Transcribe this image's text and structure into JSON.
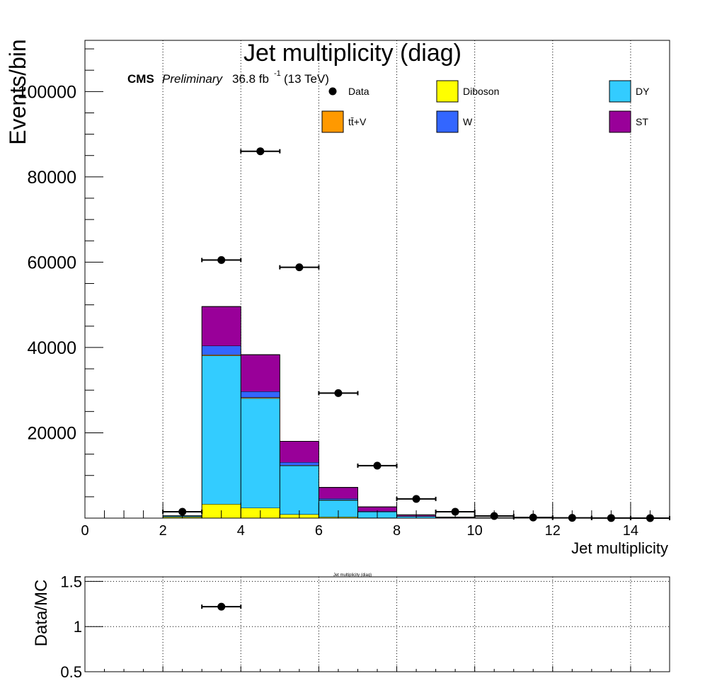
{
  "chart_data": {
    "type": "bar",
    "title": "Jet multiplicity (diag)",
    "xlabel": "Jet multiplicity",
    "ylabel": "Events/bin",
    "xlim": [
      0,
      15
    ],
    "ylim": [
      0,
      112000
    ],
    "x_ticks": [
      "0",
      "2",
      "4",
      "6",
      "8",
      "10",
      "12",
      "14"
    ],
    "y_ticks": [
      "20000",
      "40000",
      "60000",
      "80000",
      "100000"
    ],
    "grid": "vertical dotted",
    "stacked": true,
    "bin_edges": [
      2,
      3,
      4,
      5,
      6,
      7,
      8,
      9,
      10,
      11,
      12,
      13,
      14,
      15
    ],
    "series": [
      {
        "name": "Diboson",
        "color": "#ffff00",
        "values": [
          300,
          3300,
          2400,
          900,
          300,
          100,
          30,
          10,
          0,
          0,
          0,
          0,
          0
        ]
      },
      {
        "name": "DY",
        "color": "#33ccff",
        "values": [
          200,
          34800,
          25700,
          11400,
          3900,
          1400,
          400,
          100,
          30,
          10,
          0,
          0,
          0
        ]
      },
      {
        "name": "tt̄+V",
        "color": "#ff9900",
        "values": [
          0,
          200,
          200,
          100,
          100,
          30,
          10,
          0,
          0,
          0,
          0,
          0,
          0
        ]
      },
      {
        "name": "W",
        "color": "#3366ff",
        "values": [
          20,
          2100,
          1400,
          700,
          300,
          100,
          30,
          10,
          0,
          0,
          0,
          0,
          0
        ]
      },
      {
        "name": "ST",
        "color": "#990099",
        "values": [
          10,
          9200,
          8600,
          4900,
          2600,
          1000,
          300,
          100,
          30,
          10,
          0,
          0,
          0
        ]
      }
    ],
    "data_points": {
      "name": "Data",
      "x": [
        2.5,
        3.5,
        4.5,
        5.5,
        6.5,
        7.5,
        8.5,
        9.5,
        10.5,
        11.5,
        12.5,
        13.5,
        14.5
      ],
      "y": [
        1500,
        60500,
        86000,
        58800,
        29300,
        12300,
        4500,
        1500,
        500,
        150,
        60,
        30,
        10
      ]
    },
    "ratio_panel": {
      "ylabel": "Data/MC",
      "ylim": [
        0.5,
        1.55
      ],
      "y_ticks": [
        "0.5",
        "1",
        "1.5"
      ],
      "title": "Jet multiplicity (diag)",
      "points": [
        {
          "x": 3.5,
          "y": 1.22
        }
      ]
    },
    "legend_placement": "top",
    "annotation": {
      "cms": "CMS",
      "preliminary": "Preliminary",
      "lumi_value": "36.8 fb",
      "lumi_exp": "-1",
      "energy": "(13 TeV)"
    }
  }
}
